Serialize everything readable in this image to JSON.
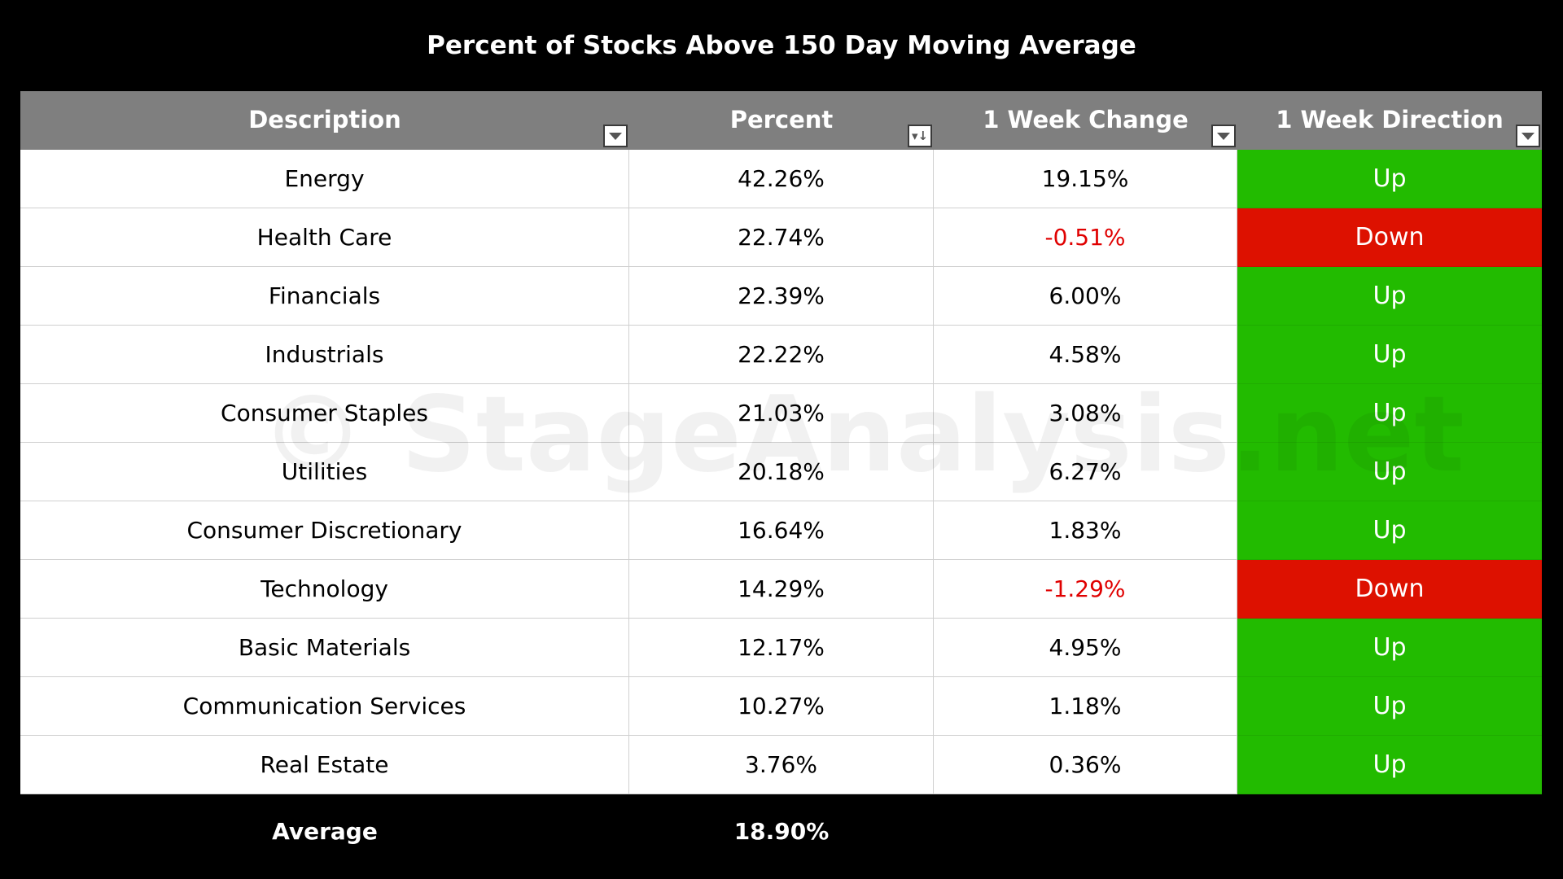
{
  "chart_data": {
    "type": "table",
    "title": "Percent of Stocks Above 150 Day Moving Average",
    "columns": [
      "Description",
      "Percent",
      "1 Week Change",
      "1 Week Direction"
    ],
    "rows": [
      {
        "description": "Energy",
        "percent": "42.26%",
        "change": "19.15%",
        "direction": "Up"
      },
      {
        "description": "Health Care",
        "percent": "22.74%",
        "change": "-0.51%",
        "direction": "Down"
      },
      {
        "description": "Financials",
        "percent": "22.39%",
        "change": "6.00%",
        "direction": "Up"
      },
      {
        "description": "Industrials",
        "percent": "22.22%",
        "change": "4.58%",
        "direction": "Up"
      },
      {
        "description": "Consumer Staples",
        "percent": "21.03%",
        "change": "3.08%",
        "direction": "Up"
      },
      {
        "description": "Utilities",
        "percent": "20.18%",
        "change": "6.27%",
        "direction": "Up"
      },
      {
        "description": "Consumer Discretionary",
        "percent": "16.64%",
        "change": "1.83%",
        "direction": "Up"
      },
      {
        "description": "Technology",
        "percent": "14.29%",
        "change": "-1.29%",
        "direction": "Down"
      },
      {
        "description": "Basic Materials",
        "percent": "12.17%",
        "change": "4.95%",
        "direction": "Up"
      },
      {
        "description": "Communication Services",
        "percent": "10.27%",
        "change": "1.18%",
        "direction": "Up"
      },
      {
        "description": "Real Estate",
        "percent": "3.76%",
        "change": "0.36%",
        "direction": "Up"
      }
    ],
    "footer": {
      "label": "Average",
      "percent": "18.90%"
    },
    "watermark": "© StageAnalysis.net",
    "colors": {
      "background": "#000000",
      "header": "#7f7f7f",
      "up": "#22bb00",
      "down": "#dd1100",
      "negative_text": "#e00000"
    }
  }
}
